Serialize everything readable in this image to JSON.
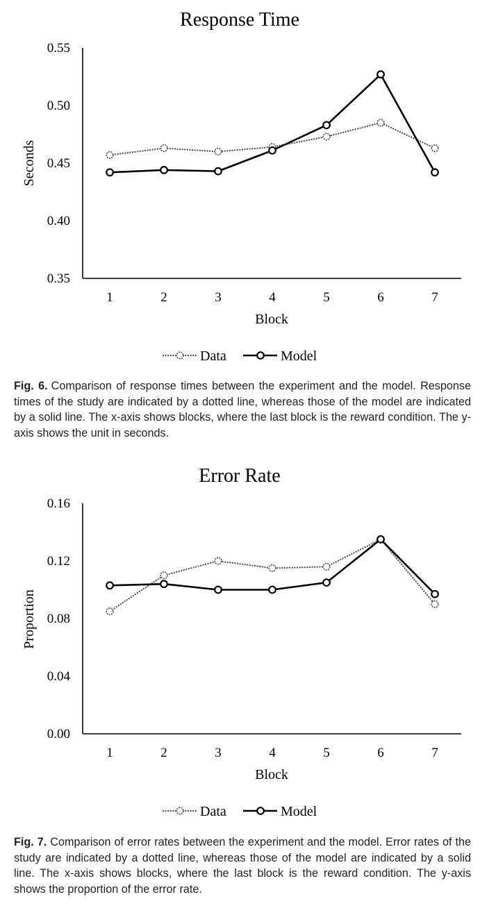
{
  "chart_data": [
    {
      "type": "line",
      "title": "Response Time",
      "xlabel": "Block",
      "ylabel": "Seconds",
      "categories": [
        "1",
        "2",
        "3",
        "4",
        "5",
        "6",
        "7"
      ],
      "ylim": [
        0.35,
        0.55
      ],
      "yticks": [
        "0.35",
        "0.40",
        "0.45",
        "0.50",
        "0.55"
      ],
      "grid": false,
      "legend": "bottom",
      "series": [
        {
          "name": "Data",
          "style": "dotted",
          "values": [
            0.457,
            0.463,
            0.46,
            0.464,
            0.473,
            0.485,
            0.463
          ]
        },
        {
          "name": "Model",
          "style": "solid",
          "values": [
            0.442,
            0.444,
            0.443,
            0.461,
            0.483,
            0.527,
            0.442
          ]
        }
      ]
    },
    {
      "type": "line",
      "title": "Error Rate",
      "xlabel": "Block",
      "ylabel": "Proportion",
      "categories": [
        "1",
        "2",
        "3",
        "4",
        "5",
        "6",
        "7"
      ],
      "ylim": [
        0.0,
        0.16
      ],
      "yticks": [
        "0.00",
        "0.04",
        "0.08",
        "0.12",
        "0.16"
      ],
      "grid": false,
      "legend": "bottom",
      "series": [
        {
          "name": "Data",
          "style": "dotted",
          "values": [
            0.085,
            0.11,
            0.12,
            0.115,
            0.116,
            0.135,
            0.09
          ]
        },
        {
          "name": "Model",
          "style": "solid",
          "values": [
            0.103,
            0.104,
            0.1,
            0.1,
            0.105,
            0.135,
            0.097
          ]
        }
      ]
    }
  ],
  "captions": [
    {
      "label": "Fig. 6.",
      "text": "Comparison of response times between the experiment and the model. Response times of the study are indicated by a dotted line, whereas those of the model are indicated by a solid line. The x-axis shows blocks, where the last block is the reward condition. The y-axis shows the unit in seconds."
    },
    {
      "label": "Fig. 7.",
      "text": "Comparison of error rates between the experiment and the model. Error rates of the study are indicated by a dotted line, whereas those of the model are indicated by a solid line. The x-axis shows blocks, where the last block is the reward condition. The y-axis shows the proportion of the error rate."
    }
  ]
}
